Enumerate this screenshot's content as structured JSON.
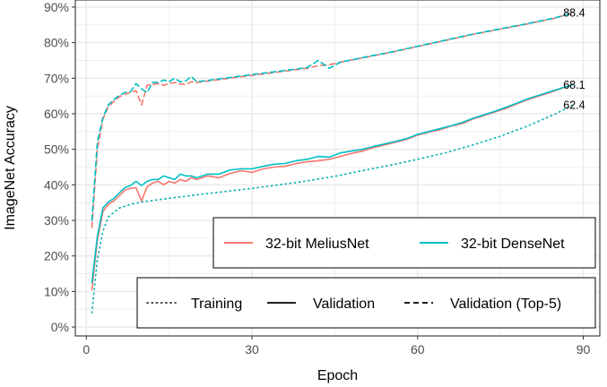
{
  "chart_data": {
    "type": "line",
    "xlabel": "Epoch",
    "ylabel": "ImageNet Accuracy",
    "xlim": [
      -2,
      93
    ],
    "ylim": [
      -0.025,
      0.92
    ],
    "x_ticks": [
      0,
      30,
      60,
      90
    ],
    "y_ticks": [
      0,
      0.1,
      0.2,
      0.3,
      0.4,
      0.5,
      0.6,
      0.7,
      0.8,
      0.9
    ],
    "y_tick_labels": [
      "0%",
      "10%",
      "20%",
      "30%",
      "40%",
      "50%",
      "60%",
      "70%",
      "80%",
      "90%"
    ],
    "grid": true,
    "series": [
      {
        "name": "32-bit MeliusNet",
        "metric": "Training",
        "color": "#F8766D",
        "x": [
          1,
          2,
          3,
          4,
          6,
          8,
          10,
          15,
          20,
          25,
          30,
          35,
          40,
          45,
          50,
          55,
          60,
          65,
          70,
          75,
          80,
          85,
          88
        ],
        "y": [
          0.04,
          0.19,
          0.27,
          0.31,
          0.335,
          0.345,
          0.352,
          0.362,
          0.372,
          0.381,
          0.39,
          0.4,
          0.411,
          0.424,
          0.44,
          0.455,
          0.472,
          0.49,
          0.512,
          0.537,
          0.566,
          0.6,
          0.624
        ]
      },
      {
        "name": "32-bit DenseNet",
        "metric": "Training",
        "color": "#00BFC4",
        "x": [
          1,
          2,
          3,
          4,
          6,
          8,
          10,
          15,
          20,
          25,
          30,
          35,
          40,
          45,
          50,
          55,
          60,
          65,
          70,
          75,
          80,
          85,
          88
        ],
        "y": [
          0.04,
          0.19,
          0.27,
          0.31,
          0.335,
          0.345,
          0.352,
          0.362,
          0.372,
          0.381,
          0.39,
          0.4,
          0.411,
          0.424,
          0.44,
          0.455,
          0.472,
          0.49,
          0.512,
          0.537,
          0.566,
          0.6,
          0.624
        ]
      },
      {
        "name": "32-bit MeliusNet",
        "metric": "Validation",
        "color": "#F8766D",
        "x": [
          1,
          2,
          3,
          4,
          5,
          6,
          7,
          8,
          9,
          10,
          11,
          12,
          13,
          14,
          15,
          16,
          17,
          18,
          19,
          20,
          22,
          24,
          26,
          28,
          30,
          32,
          34,
          36,
          38,
          40,
          42,
          44,
          46,
          48,
          50,
          52,
          54,
          56,
          58,
          60,
          62,
          64,
          66,
          68,
          70,
          72,
          74,
          76,
          78,
          80,
          82,
          84,
          86,
          88
        ],
        "y": [
          0.105,
          0.245,
          0.325,
          0.345,
          0.355,
          0.37,
          0.385,
          0.39,
          0.392,
          0.355,
          0.395,
          0.405,
          0.41,
          0.4,
          0.41,
          0.405,
          0.415,
          0.41,
          0.42,
          0.415,
          0.425,
          0.42,
          0.432,
          0.44,
          0.435,
          0.445,
          0.45,
          0.452,
          0.46,
          0.465,
          0.468,
          0.472,
          0.48,
          0.488,
          0.495,
          0.505,
          0.512,
          0.52,
          0.528,
          0.54,
          0.548,
          0.555,
          0.565,
          0.572,
          0.585,
          0.595,
          0.605,
          0.615,
          0.628,
          0.64,
          0.65,
          0.66,
          0.671,
          0.681
        ]
      },
      {
        "name": "32-bit DenseNet",
        "metric": "Validation",
        "color": "#00BFC4",
        "x": [
          1,
          2,
          3,
          4,
          5,
          6,
          7,
          8,
          9,
          10,
          11,
          12,
          13,
          14,
          15,
          16,
          17,
          18,
          19,
          20,
          22,
          24,
          26,
          28,
          30,
          32,
          34,
          36,
          38,
          40,
          42,
          44,
          46,
          48,
          50,
          52,
          54,
          56,
          58,
          60,
          62,
          64,
          66,
          68,
          70,
          72,
          74,
          76,
          78,
          80,
          82,
          84,
          86,
          88
        ],
        "y": [
          0.125,
          0.255,
          0.335,
          0.352,
          0.362,
          0.378,
          0.392,
          0.398,
          0.41,
          0.398,
          0.41,
          0.415,
          0.415,
          0.425,
          0.42,
          0.415,
          0.43,
          0.425,
          0.425,
          0.42,
          0.43,
          0.43,
          0.442,
          0.445,
          0.445,
          0.452,
          0.458,
          0.46,
          0.468,
          0.472,
          0.48,
          0.478,
          0.49,
          0.495,
          0.5,
          0.508,
          0.515,
          0.522,
          0.53,
          0.542,
          0.55,
          0.558,
          0.566,
          0.575,
          0.587,
          0.597,
          0.607,
          0.618,
          0.63,
          0.642,
          0.652,
          0.662,
          0.672,
          0.681
        ]
      },
      {
        "name": "32-bit MeliusNet",
        "metric": "Validation (Top-5)",
        "color": "#F8766D",
        "x": [
          1,
          2,
          3,
          4,
          5,
          6,
          7,
          8,
          9,
          10,
          11,
          12,
          13,
          14,
          15,
          16,
          17,
          18,
          19,
          20,
          25,
          30,
          35,
          40,
          42,
          44,
          46,
          50,
          55,
          60,
          65,
          70,
          75,
          80,
          85,
          88
        ],
        "y": [
          0.28,
          0.5,
          0.585,
          0.62,
          0.635,
          0.648,
          0.655,
          0.66,
          0.665,
          0.625,
          0.68,
          0.682,
          0.685,
          0.68,
          0.685,
          0.688,
          0.684,
          0.682,
          0.69,
          0.688,
          0.698,
          0.708,
          0.718,
          0.728,
          0.735,
          0.738,
          0.745,
          0.757,
          0.772,
          0.789,
          0.806,
          0.823,
          0.838,
          0.853,
          0.869,
          0.884
        ]
      },
      {
        "name": "32-bit DenseNet",
        "metric": "Validation (Top-5)",
        "color": "#00BFC4",
        "x": [
          1,
          2,
          3,
          4,
          5,
          6,
          7,
          8,
          9,
          10,
          11,
          12,
          13,
          14,
          15,
          16,
          17,
          18,
          19,
          20,
          25,
          30,
          35,
          40,
          42,
          44,
          46,
          50,
          55,
          60,
          65,
          70,
          75,
          80,
          85,
          88
        ],
        "y": [
          0.3,
          0.52,
          0.59,
          0.625,
          0.64,
          0.652,
          0.66,
          0.662,
          0.685,
          0.67,
          0.66,
          0.688,
          0.688,
          0.695,
          0.69,
          0.7,
          0.69,
          0.692,
          0.705,
          0.69,
          0.7,
          0.71,
          0.72,
          0.73,
          0.75,
          0.728,
          0.745,
          0.758,
          0.773,
          0.79,
          0.807,
          0.824,
          0.839,
          0.854,
          0.87,
          0.884
        ]
      }
    ],
    "end_labels": [
      {
        "text": "88.4",
        "x": 88,
        "y": 0.884
      },
      {
        "text": "68.1",
        "x": 88,
        "y": 0.681
      },
      {
        "text": "62.4",
        "x": 88,
        "y": 0.624
      }
    ],
    "legend_models": [
      {
        "label": "32-bit MeliusNet",
        "color": "#F8766D"
      },
      {
        "label": "32-bit DenseNet",
        "color": "#00BFC4"
      }
    ],
    "legend_metrics": [
      {
        "label": "Training",
        "style": "dotted"
      },
      {
        "label": "Validation",
        "style": "solid"
      },
      {
        "label": "Validation (Top-5)",
        "style": "dashed"
      }
    ],
    "legend_placement": "bottom-right"
  }
}
